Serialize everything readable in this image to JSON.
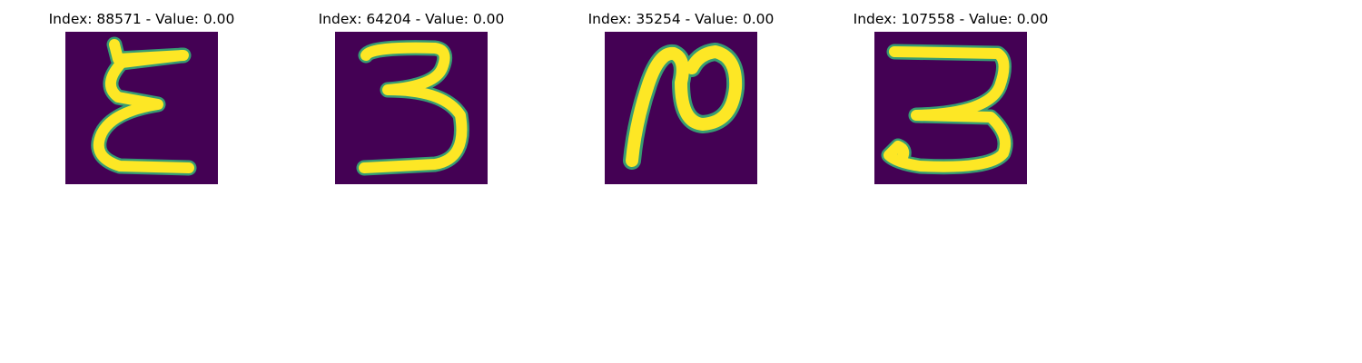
{
  "colors": {
    "background": "#440154",
    "stroke": "#fde725",
    "edge": "#35b779"
  },
  "panels": [
    {
      "title": "Index: 88571 - Value: 0.00",
      "glyph": "epsilon"
    },
    {
      "title": "Index: 64204 - Value: 0.00",
      "glyph": "three"
    },
    {
      "title": "Index: 35254 - Value: 0.00",
      "glyph": "n-loop"
    },
    {
      "title": "Index: 107558 - Value: 0.00",
      "glyph": "three"
    }
  ]
}
